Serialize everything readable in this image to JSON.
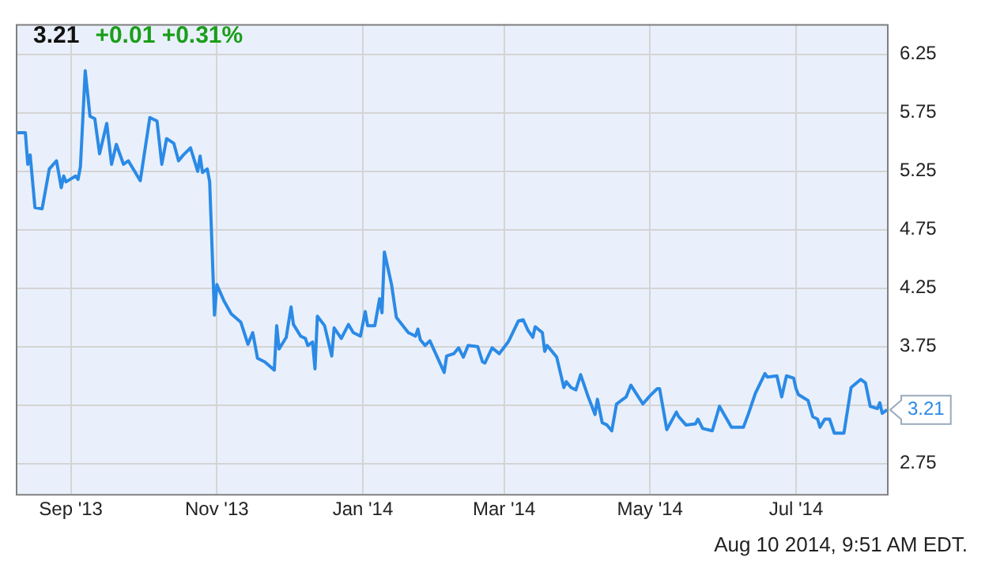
{
  "chart_data": {
    "type": "line",
    "title": "3.21",
    "subtitle": "+0.01 +0.31%",
    "annotations": [
      "Aug 10 2014, 9:51 AM EDT."
    ],
    "x": [
      "2013-08-09",
      "2013-08-13",
      "2013-08-14",
      "2013-08-15",
      "2013-08-17",
      "2013-08-20",
      "2013-08-23",
      "2013-08-26",
      "2013-08-28",
      "2013-08-29",
      "2013-08-30",
      "2013-09-03",
      "2013-09-04",
      "2013-09-05",
      "2013-09-07",
      "2013-09-09",
      "2013-09-11",
      "2013-09-13",
      "2013-09-16",
      "2013-09-18",
      "2013-09-20",
      "2013-09-23",
      "2013-09-25",
      "2013-09-30",
      "2013-10-04",
      "2013-10-07",
      "2013-10-09",
      "2013-10-11",
      "2013-10-14",
      "2013-10-16",
      "2013-10-18",
      "2013-10-21",
      "2013-10-24",
      "2013-10-25",
      "2013-10-26",
      "2013-10-28",
      "2013-10-29",
      "2013-10-31",
      "2013-11-01",
      "2013-11-04",
      "2013-11-07",
      "2013-11-11",
      "2013-11-14",
      "2013-11-16",
      "2013-11-18",
      "2013-11-21",
      "2013-11-25",
      "2013-11-26",
      "2013-11-27",
      "2013-11-30",
      "2013-12-02",
      "2013-12-03",
      "2013-12-06",
      "2013-12-08",
      "2013-12-09",
      "2013-12-11",
      "2013-12-12",
      "2013-12-13",
      "2013-12-16",
      "2013-12-19",
      "2013-12-20",
      "2013-12-23",
      "2013-12-26",
      "2013-12-28",
      "2013-12-31",
      "2014-01-02",
      "2014-01-03",
      "2014-01-06",
      "2014-01-08",
      "2014-01-09",
      "2014-01-10",
      "2014-01-13",
      "2014-01-15",
      "2014-01-20",
      "2014-01-23",
      "2014-01-24",
      "2014-01-25",
      "2014-01-27",
      "2014-01-29",
      "2014-02-04",
      "2014-02-05",
      "2014-02-08",
      "2014-02-10",
      "2014-02-12",
      "2014-02-14",
      "2014-02-18",
      "2014-02-20",
      "2014-02-21",
      "2014-02-24",
      "2014-02-27",
      "2014-03-02",
      "2014-03-03",
      "2014-03-07",
      "2014-03-09",
      "2014-03-11",
      "2014-03-13",
      "2014-03-14",
      "2014-03-17",
      "2014-03-18",
      "2014-03-19",
      "2014-03-23",
      "2014-03-26",
      "2014-03-27",
      "2014-03-29",
      "2014-03-31",
      "2014-04-02",
      "2014-04-05",
      "2014-04-08",
      "2014-04-09",
      "2014-04-11",
      "2014-04-13",
      "2014-04-15",
      "2014-04-17",
      "2014-04-21",
      "2014-04-23",
      "2014-04-28",
      "2014-05-01",
      "2014-05-04",
      "2014-05-05",
      "2014-05-08",
      "2014-05-12",
      "2014-05-13",
      "2014-05-16",
      "2014-05-20",
      "2014-05-21",
      "2014-05-23",
      "2014-05-27",
      "2014-05-30",
      "2014-06-04",
      "2014-06-09",
      "2014-06-11",
      "2014-06-14",
      "2014-06-18",
      "2014-06-19",
      "2014-06-23",
      "2014-06-25",
      "2014-06-27",
      "2014-06-30",
      "2014-07-01",
      "2014-07-02",
      "2014-07-06",
      "2014-07-08",
      "2014-07-10",
      "2014-07-11",
      "2014-07-13",
      "2014-07-15",
      "2014-07-17",
      "2014-07-21",
      "2014-07-24",
      "2014-07-28",
      "2014-07-30",
      "2014-08-01",
      "2014-08-04",
      "2014-08-05",
      "2014-08-06",
      "2014-08-08"
    ],
    "series": [
      {
        "color": "#2b8ae6",
        "values": [
          5.58,
          5.58,
          5.31,
          5.39,
          4.94,
          4.93,
          5.27,
          5.34,
          5.11,
          5.21,
          5.16,
          5.21,
          5.18,
          5.29,
          6.11,
          5.72,
          5.7,
          5.4,
          5.66,
          5.31,
          5.48,
          5.31,
          5.34,
          5.17,
          5.71,
          5.68,
          5.31,
          5.53,
          5.49,
          5.34,
          5.39,
          5.45,
          5.25,
          5.38,
          5.24,
          5.27,
          5.16,
          4.02,
          4.28,
          4.14,
          4.03,
          3.96,
          3.77,
          3.87,
          3.65,
          3.62,
          3.55,
          3.93,
          3.73,
          3.83,
          4.09,
          3.94,
          3.84,
          3.82,
          3.76,
          3.79,
          3.56,
          4.01,
          3.93,
          3.67,
          3.91,
          3.82,
          3.94,
          3.87,
          3.84,
          4.05,
          3.93,
          3.93,
          4.16,
          4.04,
          4.56,
          4.28,
          4.0,
          3.87,
          3.84,
          3.9,
          3.81,
          3.76,
          3.8,
          3.53,
          3.67,
          3.69,
          3.74,
          3.66,
          3.76,
          3.75,
          3.62,
          3.61,
          3.74,
          3.69,
          3.77,
          3.8,
          3.97,
          3.98,
          3.89,
          3.83,
          3.92,
          3.87,
          3.71,
          3.76,
          3.66,
          3.4,
          3.45,
          3.4,
          3.38,
          3.51,
          3.33,
          3.17,
          3.3,
          3.1,
          3.08,
          3.03,
          3.26,
          3.32,
          3.42,
          3.26,
          3.33,
          3.39,
          3.39,
          3.04,
          3.19,
          3.15,
          3.08,
          3.09,
          3.13,
          3.05,
          3.03,
          3.24,
          3.06,
          3.06,
          3.17,
          3.35,
          3.52,
          3.49,
          3.5,
          3.32,
          3.5,
          3.48,
          3.39,
          3.34,
          3.29,
          3.15,
          3.13,
          3.06,
          3.13,
          3.13,
          3.01,
          3.01,
          3.4,
          3.47,
          3.44,
          3.24,
          3.22,
          3.27,
          3.18,
          3.21
        ],
        "value_labels": [
          null,
          null,
          null,
          null,
          null,
          null,
          null,
          null,
          null,
          null,
          null,
          null,
          null,
          null,
          null,
          null,
          null,
          null,
          null,
          null,
          null,
          null,
          null,
          null,
          null,
          null,
          null,
          null,
          null,
          null,
          null,
          null,
          null,
          null,
          null,
          null,
          null,
          null,
          null,
          null,
          null,
          null,
          null,
          null,
          null,
          null,
          null,
          null,
          null,
          null,
          null,
          null,
          null,
          null,
          null,
          null,
          null,
          null,
          null,
          null,
          null,
          null,
          null,
          null,
          null,
          null,
          null,
          null,
          null,
          null,
          null,
          null,
          null,
          null,
          null,
          null,
          null,
          null,
          null,
          null,
          null,
          null,
          null,
          null,
          null,
          null,
          null,
          null,
          null,
          null,
          null,
          null,
          null,
          null,
          null,
          null,
          null,
          null,
          null,
          null,
          null,
          null,
          null,
          null,
          null,
          null,
          null,
          null,
          null,
          null,
          null,
          null,
          null,
          null,
          null,
          null,
          null,
          null,
          null,
          null,
          null,
          null,
          null,
          null,
          null,
          null,
          null,
          null,
          null,
          null,
          null,
          null,
          null,
          null,
          null,
          null,
          null,
          null,
          null,
          null,
          null,
          null,
          null,
          null,
          null,
          null,
          null,
          null,
          null,
          null,
          null,
          null,
          null,
          null,
          null,
          "3.21"
        ]
      }
    ],
    "xlim": [
      "2013-08-09",
      "2014-08-08"
    ],
    "xticks": [
      {
        "value": "2013-09-01",
        "label": "Sep '13"
      },
      {
        "value": "2013-11-01",
        "label": "Nov '13"
      },
      {
        "value": "2014-01-01",
        "label": "Jan '14"
      },
      {
        "value": "2014-03-01",
        "label": "Mar '14"
      },
      {
        "value": "2014-05-01",
        "label": "May '14"
      },
      {
        "value": "2014-07-01",
        "label": "Jul '14"
      }
    ],
    "ylim": [
      2.49,
      6.51
    ],
    "yticks": [
      2.75,
      {
        "value": 3.25,
        "label": null
      },
      3.75,
      4.25,
      4.75,
      5.25,
      5.75,
      6.25
    ],
    "grid": true,
    "marker": "none",
    "line_style": "solid"
  }
}
